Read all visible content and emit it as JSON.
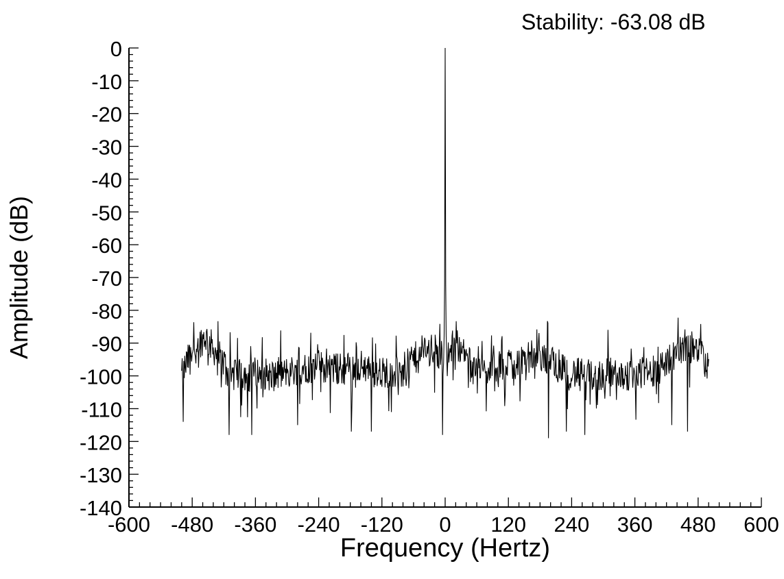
{
  "annotation": "Stability: -63.08 dB",
  "chart_data": {
    "type": "line",
    "xlabel": "Frequency (Hertz)",
    "ylabel": "Amplitude (dB)",
    "xlim": [
      -600,
      600
    ],
    "ylim": [
      -140,
      0
    ],
    "x_ticks": [
      -600,
      -480,
      -360,
      -240,
      -120,
      0,
      120,
      240,
      360,
      480,
      600
    ],
    "y_ticks": [
      0,
      -10,
      -20,
      -30,
      -40,
      -50,
      -60,
      -70,
      -80,
      -90,
      -100,
      -110,
      -120,
      -130,
      -140
    ],
    "grid": false,
    "x_range_of_data": [
      -500,
      500
    ],
    "carrier_peak": {
      "x": 0,
      "y": 0
    },
    "noise_floor_envelope": {
      "x": [
        -500,
        -480,
        -455,
        -430,
        -400,
        -360,
        -320,
        -280,
        -240,
        -200,
        -160,
        -120,
        -80,
        -40,
        -20,
        0,
        20,
        40,
        80,
        120,
        160,
        200,
        240,
        280,
        320,
        360,
        400,
        440,
        460,
        480,
        500
      ],
      "y": [
        -100,
        -92,
        -88,
        -94,
        -100,
        -99,
        -100,
        -98,
        -97,
        -98,
        -97,
        -99,
        -98,
        -92,
        -92,
        -97,
        -88,
        -95,
        -99,
        -96,
        -94,
        -95,
        -99,
        -100,
        -99,
        -100,
        -98,
        -93,
        -91,
        -92,
        -98
      ]
    },
    "notable_minima": [
      {
        "x": -497,
        "y": -114
      },
      {
        "x": -410,
        "y": -118
      },
      {
        "x": -367,
        "y": -118
      },
      {
        "x": -280,
        "y": -115
      },
      {
        "x": -178,
        "y": -117
      },
      {
        "x": -140,
        "y": -117
      },
      {
        "x": -5,
        "y": -118
      },
      {
        "x": 196,
        "y": -119
      },
      {
        "x": 230,
        "y": -117
      },
      {
        "x": 265,
        "y": -118
      },
      {
        "x": 430,
        "y": -115
      },
      {
        "x": 460,
        "y": -117
      }
    ]
  }
}
